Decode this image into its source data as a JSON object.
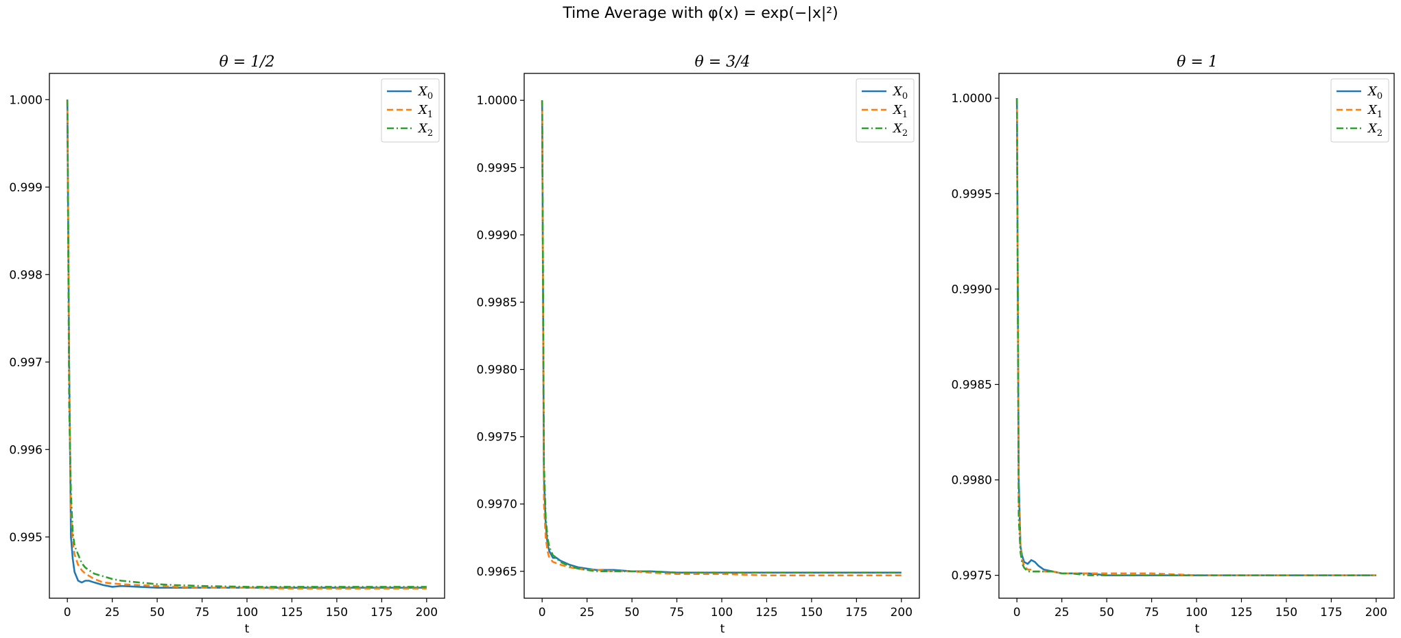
{
  "figure": {
    "title": "Time Average with φ(x) = exp(−|x|²)"
  },
  "colors": {
    "X0": "#1f77b4",
    "X1": "#ff7f0e",
    "X2": "#2ca02c",
    "axes": "#000000"
  },
  "chart_data": [
    {
      "type": "line",
      "title": "θ = 1/2",
      "xlabel": "t",
      "ylabel": "",
      "xlim": [
        -10,
        210
      ],
      "ylim": [
        0.9943,
        1.0003
      ],
      "xticks": [
        0,
        25,
        50,
        75,
        100,
        125,
        150,
        175,
        200
      ],
      "yticks": [
        0.995,
        0.996,
        0.997,
        0.998,
        0.999,
        1.0
      ],
      "ytick_labels": [
        "0.995",
        "0.996",
        "0.997",
        "0.998",
        "0.999",
        "1.000"
      ],
      "grid": false,
      "legend": "top-right",
      "series": [
        {
          "name": "X0",
          "style": "solid",
          "x": [
            0,
            1,
            2,
            3,
            4,
            6,
            8,
            10,
            12,
            15,
            20,
            25,
            30,
            40,
            50,
            60,
            75,
            100,
            125,
            150,
            175,
            200
          ],
          "y": [
            1.0,
            0.997,
            0.995,
            0.99475,
            0.9946,
            0.9945,
            0.99448,
            0.9945,
            0.9945,
            0.99448,
            0.99445,
            0.99443,
            0.99444,
            0.99443,
            0.99442,
            0.99442,
            0.99442,
            0.99442,
            0.99442,
            0.99442,
            0.99442,
            0.99442
          ]
        },
        {
          "name": "X1",
          "style": "dashed",
          "x": [
            0,
            1,
            2,
            3,
            4,
            6,
            8,
            10,
            15,
            20,
            25,
            30,
            40,
            50,
            60,
            75,
            100,
            125,
            150,
            175,
            200
          ],
          "y": [
            1.0,
            0.9968,
            0.9953,
            0.99495,
            0.9948,
            0.99468,
            0.99462,
            0.99458,
            0.99452,
            0.99448,
            0.99447,
            0.99446,
            0.99445,
            0.99444,
            0.99443,
            0.99442,
            0.99442,
            0.99441,
            0.99441,
            0.99441,
            0.99441
          ]
        },
        {
          "name": "X2",
          "style": "dashdot",
          "x": [
            0,
            1,
            2,
            3,
            4,
            6,
            8,
            10,
            15,
            20,
            25,
            30,
            40,
            50,
            60,
            75,
            100,
            125,
            150,
            175,
            200
          ],
          "y": [
            1.0,
            0.9965,
            0.9955,
            0.99505,
            0.9949,
            0.9948,
            0.9947,
            0.99465,
            0.99458,
            0.99455,
            0.99452,
            0.9945,
            0.99448,
            0.99446,
            0.99445,
            0.99444,
            0.99443,
            0.99443,
            0.99443,
            0.99443,
            0.99443
          ]
        }
      ]
    },
    {
      "type": "line",
      "title": "θ = 3/4",
      "xlabel": "t",
      "ylabel": "",
      "xlim": [
        -10,
        210
      ],
      "ylim": [
        0.9963,
        1.0002
      ],
      "xticks": [
        0,
        25,
        50,
        75,
        100,
        125,
        150,
        175,
        200
      ],
      "yticks": [
        0.9965,
        0.997,
        0.9975,
        0.998,
        0.9985,
        0.999,
        0.9995,
        1.0
      ],
      "ytick_labels": [
        "0.9965",
        "0.9970",
        "0.9975",
        "0.9980",
        "0.9985",
        "0.9990",
        "0.9995",
        "1.0000"
      ],
      "grid": false,
      "legend": "top-right",
      "series": [
        {
          "name": "X0",
          "style": "solid",
          "x": [
            0,
            1,
            2,
            3,
            4,
            6,
            8,
            10,
            15,
            20,
            25,
            30,
            40,
            50,
            60,
            75,
            100,
            125,
            150,
            175,
            200
          ],
          "y": [
            1.0,
            0.9972,
            0.99685,
            0.9967,
            0.99665,
            0.9966,
            0.9966,
            0.99658,
            0.99655,
            0.99653,
            0.99652,
            0.99651,
            0.99651,
            0.9965,
            0.9965,
            0.99649,
            0.99649,
            0.99649,
            0.99649,
            0.99649,
            0.99649
          ]
        },
        {
          "name": "X1",
          "style": "dashed",
          "x": [
            0,
            1,
            2,
            3,
            4,
            6,
            8,
            10,
            15,
            20,
            25,
            30,
            40,
            50,
            60,
            75,
            100,
            125,
            150,
            175,
            200
          ],
          "y": [
            1.0,
            0.997,
            0.99675,
            0.99665,
            0.9966,
            0.99657,
            0.99656,
            0.99655,
            0.99653,
            0.99652,
            0.99651,
            0.99651,
            0.9965,
            0.9965,
            0.99649,
            0.99648,
            0.99648,
            0.99647,
            0.99647,
            0.99647,
            0.99647
          ]
        },
        {
          "name": "X2",
          "style": "dashdot",
          "x": [
            0,
            1,
            2,
            3,
            4,
            6,
            8,
            10,
            15,
            20,
            25,
            30,
            40,
            50,
            60,
            75,
            100,
            125,
            150,
            175,
            200
          ],
          "y": [
            1.0,
            0.9973,
            0.9969,
            0.99675,
            0.99668,
            0.99662,
            0.9966,
            0.99657,
            0.99654,
            0.99652,
            0.99651,
            0.9965,
            0.9965,
            0.9965,
            0.9965,
            0.99649,
            0.99649,
            0.99649,
            0.99649,
            0.99649,
            0.99649
          ]
        }
      ]
    },
    {
      "type": "line",
      "title": "θ = 1",
      "xlabel": "t",
      "ylabel": "",
      "xlim": [
        -10,
        210
      ],
      "ylim": [
        0.99738,
        1.00013
      ],
      "xticks": [
        0,
        25,
        50,
        75,
        100,
        125,
        150,
        175,
        200
      ],
      "yticks": [
        0.9975,
        0.998,
        0.9985,
        0.999,
        0.9995,
        1.0
      ],
      "ytick_labels": [
        "0.9975",
        "0.9980",
        "0.9985",
        "0.9990",
        "0.9995",
        "1.0000"
      ],
      "grid": false,
      "legend": "top-right",
      "series": [
        {
          "name": "X0",
          "style": "solid",
          "x": [
            0,
            1,
            2,
            3,
            4,
            6,
            8,
            10,
            12,
            15,
            20,
            25,
            30,
            40,
            50,
            60,
            75,
            100,
            125,
            150,
            175,
            200
          ],
          "y": [
            1.0,
            0.998,
            0.99765,
            0.9976,
            0.99757,
            0.99756,
            0.99758,
            0.99757,
            0.99755,
            0.99753,
            0.99752,
            0.99751,
            0.99751,
            0.99751,
            0.9975,
            0.9975,
            0.9975,
            0.9975,
            0.9975,
            0.9975,
            0.9975,
            0.9975
          ]
        },
        {
          "name": "X1",
          "style": "dashed",
          "x": [
            0,
            1,
            2,
            3,
            4,
            6,
            8,
            10,
            15,
            20,
            25,
            30,
            40,
            50,
            60,
            75,
            100,
            125,
            150,
            175,
            200
          ],
          "y": [
            1.0,
            0.9979,
            0.99765,
            0.99758,
            0.99755,
            0.99753,
            0.99753,
            0.99752,
            0.99752,
            0.99752,
            0.99751,
            0.99751,
            0.99751,
            0.99751,
            0.99751,
            0.99751,
            0.9975,
            0.9975,
            0.9975,
            0.9975,
            0.9975
          ]
        },
        {
          "name": "X2",
          "style": "dashdot",
          "x": [
            0,
            1,
            2,
            3,
            4,
            6,
            8,
            10,
            15,
            20,
            25,
            30,
            40,
            50,
            60,
            75,
            100,
            125,
            150,
            175,
            200
          ],
          "y": [
            1.0,
            0.9978,
            0.99762,
            0.99756,
            0.99754,
            0.99752,
            0.99752,
            0.99752,
            0.99752,
            0.99752,
            0.99751,
            0.99751,
            0.9975,
            0.9975,
            0.9975,
            0.9975,
            0.9975,
            0.9975,
            0.9975,
            0.9975,
            0.9975
          ]
        }
      ]
    }
  ]
}
